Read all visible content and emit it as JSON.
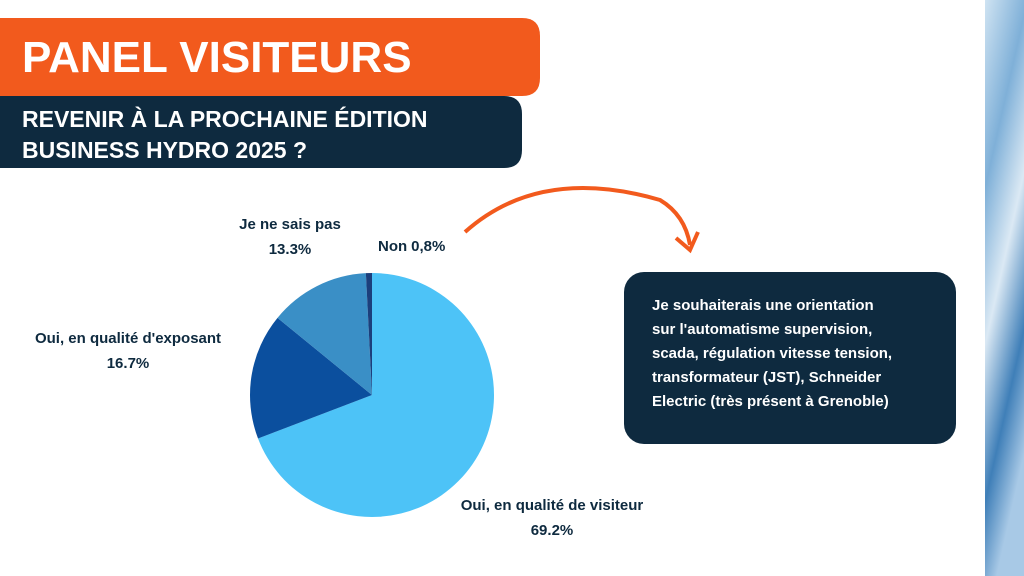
{
  "header": {
    "title": "PANEL VISITEURS",
    "subtitle": [
      "REVENIR À LA PROCHAINE ÉDITION",
      "BUSINESS HYDRO 2025 ?"
    ]
  },
  "chart_data": {
    "type": "pie",
    "categories": [
      "Oui, en qualité de visiteur",
      "Oui, en qualité d'exposant",
      "Je ne sais pas",
      "Non"
    ],
    "values": [
      69.2,
      16.7,
      13.3,
      0.8
    ],
    "value_labels": [
      "69.2%",
      "16.7%",
      "13.3%",
      "0,8%"
    ],
    "colors": [
      "#4dc3f7",
      "#0b4f9e",
      "#3a8fc6",
      "#1c3f7c"
    ]
  },
  "note": {
    "lines": [
      "Je souhaiterais une orientation",
      "sur l'automatisme supervision,",
      "scada, régulation vitesse tension,",
      "transformateur (JST), Schneider",
      "Electric (très présent à Grenoble)"
    ]
  }
}
